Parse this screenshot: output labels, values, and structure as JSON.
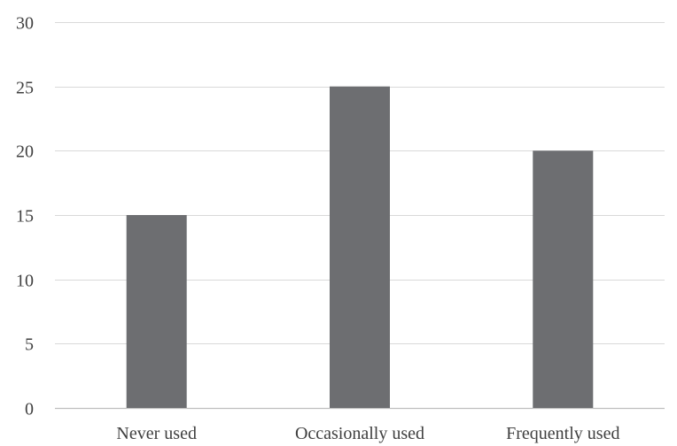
{
  "chart_data": {
    "type": "bar",
    "categories": [
      "Never used",
      "Occasionally used",
      "Frequently used"
    ],
    "values": [
      15,
      25,
      20
    ],
    "title": "",
    "xlabel": "",
    "ylabel": "",
    "ylim": [
      0,
      30
    ],
    "yticks": [
      0,
      5,
      10,
      15,
      20,
      25,
      30
    ],
    "grid": "horizontal",
    "legend": "none",
    "colors": {
      "bar": "#6d6e71",
      "grid": "#d9d9d9",
      "text": "#404040"
    }
  }
}
